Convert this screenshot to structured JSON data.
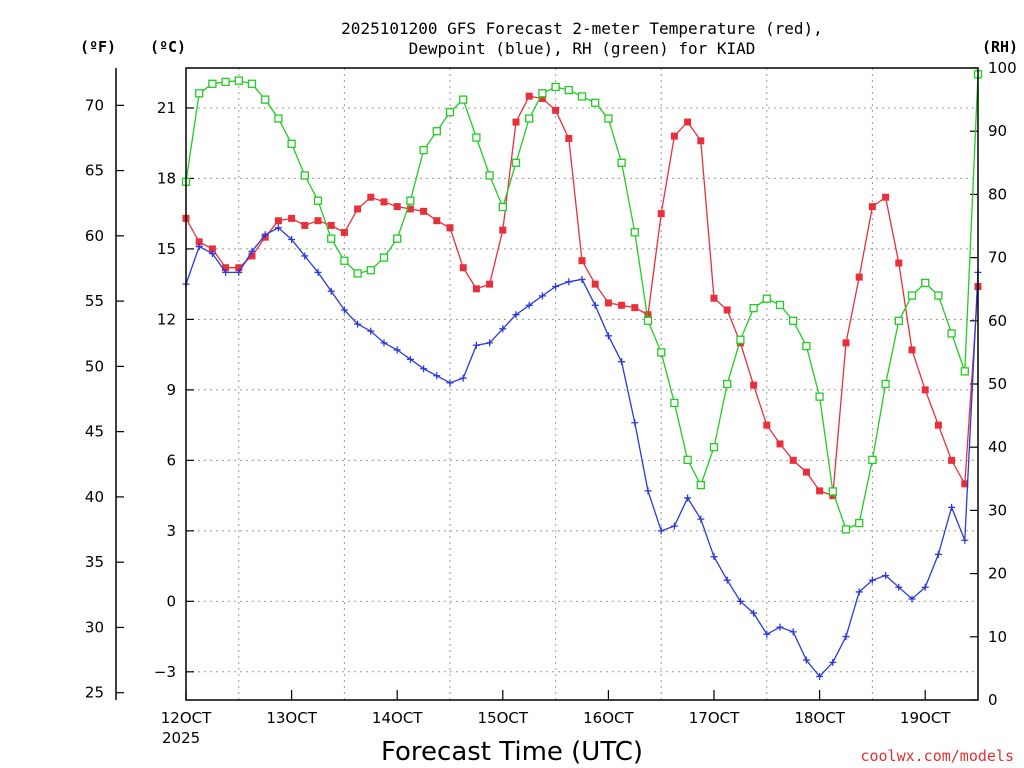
{
  "chart_data": {
    "type": "line",
    "title_line1": "2025101200 GFS Forecast 2-meter Temperature (red),",
    "title_line2": "Dewpoint (blue), RH (green) for KIAD",
    "xlabel": "Forecast Time (UTC)",
    "credit": "coolwx.com/models",
    "unit_f": "(ºF)",
    "unit_c": "(ºC)",
    "unit_rh": "(RH)",
    "x_range_days": [
      0,
      7.5
    ],
    "x_ticks": [
      {
        "day": 0,
        "label": "12OCT",
        "sub": "2025"
      },
      {
        "day": 1,
        "label": "13OCT"
      },
      {
        "day": 2,
        "label": "14OCT"
      },
      {
        "day": 3,
        "label": "15OCT"
      },
      {
        "day": 4,
        "label": "16OCT"
      },
      {
        "day": 5,
        "label": "17OCT"
      },
      {
        "day": 6,
        "label": "18OCT"
      },
      {
        "day": 7,
        "label": "19OCT"
      }
    ],
    "c_range": [
      -4.2,
      22.7
    ],
    "c_ticks": [
      "21",
      "18",
      "15",
      "12",
      "9",
      "6",
      "3",
      "0",
      "−3"
    ],
    "f_ticks": [
      "70",
      "65",
      "60",
      "55",
      "50",
      "45",
      "40",
      "35",
      "30",
      "25"
    ],
    "rh_range": [
      0,
      100
    ],
    "rh_ticks": [
      "100",
      "90",
      "80",
      "70",
      "60",
      "50",
      "40",
      "30",
      "20",
      "10",
      "0"
    ],
    "series": [
      {
        "name": "2-meter Temperature",
        "units": "C",
        "color": "#e8303a",
        "marker": "filled-square",
        "points": [
          [
            0,
            16.3
          ],
          [
            0.125,
            15.3
          ],
          [
            0.25,
            15.0
          ],
          [
            0.375,
            14.2
          ],
          [
            0.5,
            14.2
          ],
          [
            0.625,
            14.7
          ],
          [
            0.75,
            15.5
          ],
          [
            0.875,
            16.2
          ],
          [
            1.0,
            16.3
          ],
          [
            1.125,
            16.0
          ],
          [
            1.25,
            16.2
          ],
          [
            1.375,
            16.0
          ],
          [
            1.5,
            15.7
          ],
          [
            1.625,
            16.7
          ],
          [
            1.75,
            17.2
          ],
          [
            1.875,
            17.0
          ],
          [
            2.0,
            16.8
          ],
          [
            2.125,
            16.7
          ],
          [
            2.25,
            16.6
          ],
          [
            2.375,
            16.2
          ],
          [
            2.5,
            15.9
          ],
          [
            2.625,
            14.2
          ],
          [
            2.75,
            13.3
          ],
          [
            2.875,
            13.5
          ],
          [
            3.0,
            15.8
          ],
          [
            3.125,
            20.4
          ],
          [
            3.25,
            21.5
          ],
          [
            3.375,
            21.4
          ],
          [
            3.5,
            20.9
          ],
          [
            3.625,
            19.7
          ],
          [
            3.75,
            14.5
          ],
          [
            3.875,
            13.5
          ],
          [
            4.0,
            12.7
          ],
          [
            4.125,
            12.6
          ],
          [
            4.25,
            12.5
          ],
          [
            4.375,
            12.2
          ],
          [
            4.5,
            16.5
          ],
          [
            4.625,
            19.8
          ],
          [
            4.75,
            20.4
          ],
          [
            4.875,
            19.6
          ],
          [
            5.0,
            12.9
          ],
          [
            5.125,
            12.4
          ],
          [
            5.25,
            11.0
          ],
          [
            5.375,
            9.2
          ],
          [
            5.5,
            7.5
          ],
          [
            5.625,
            6.7
          ],
          [
            5.75,
            6.0
          ],
          [
            5.875,
            5.5
          ],
          [
            6.0,
            4.7
          ],
          [
            6.125,
            4.5
          ],
          [
            6.25,
            11.0
          ],
          [
            6.375,
            13.8
          ],
          [
            6.5,
            16.8
          ],
          [
            6.625,
            17.2
          ],
          [
            6.75,
            14.4
          ],
          [
            6.875,
            10.7
          ],
          [
            7.0,
            9.0
          ],
          [
            7.125,
            7.5
          ],
          [
            7.25,
            6.0
          ],
          [
            7.375,
            5.0
          ],
          [
            7.5,
            13.4
          ]
        ]
      },
      {
        "name": "Dewpoint",
        "units": "C",
        "color": "#2a3ad8",
        "marker": "plus",
        "points": [
          [
            0,
            13.5
          ],
          [
            0.125,
            15.1
          ],
          [
            0.25,
            14.8
          ],
          [
            0.375,
            14.0
          ],
          [
            0.5,
            14.0
          ],
          [
            0.625,
            14.9
          ],
          [
            0.75,
            15.6
          ],
          [
            0.875,
            15.9
          ],
          [
            1.0,
            15.4
          ],
          [
            1.125,
            14.7
          ],
          [
            1.25,
            14.0
          ],
          [
            1.375,
            13.2
          ],
          [
            1.5,
            12.4
          ],
          [
            1.625,
            11.8
          ],
          [
            1.75,
            11.5
          ],
          [
            1.875,
            11.0
          ],
          [
            2.0,
            10.7
          ],
          [
            2.125,
            10.3
          ],
          [
            2.25,
            9.9
          ],
          [
            2.375,
            9.6
          ],
          [
            2.5,
            9.3
          ],
          [
            2.625,
            9.5
          ],
          [
            2.75,
            10.9
          ],
          [
            2.875,
            11.0
          ],
          [
            3.0,
            11.6
          ],
          [
            3.125,
            12.2
          ],
          [
            3.25,
            12.6
          ],
          [
            3.375,
            13.0
          ],
          [
            3.5,
            13.4
          ],
          [
            3.625,
            13.6
          ],
          [
            3.75,
            13.7
          ],
          [
            3.875,
            12.6
          ],
          [
            4.0,
            11.3
          ],
          [
            4.125,
            10.2
          ],
          [
            4.25,
            7.6
          ],
          [
            4.375,
            4.7
          ],
          [
            4.5,
            3.0
          ],
          [
            4.625,
            3.2
          ],
          [
            4.75,
            4.4
          ],
          [
            4.875,
            3.5
          ],
          [
            5.0,
            1.9
          ],
          [
            5.125,
            0.9
          ],
          [
            5.25,
            0.0
          ],
          [
            5.375,
            -0.5
          ],
          [
            5.5,
            -1.4
          ],
          [
            5.625,
            -1.1
          ],
          [
            5.75,
            -1.3
          ],
          [
            5.875,
            -2.5
          ],
          [
            6.0,
            -3.2
          ],
          [
            6.125,
            -2.6
          ],
          [
            6.25,
            -1.5
          ],
          [
            6.375,
            0.4
          ],
          [
            6.5,
            0.9
          ],
          [
            6.625,
            1.1
          ],
          [
            6.75,
            0.6
          ],
          [
            6.875,
            0.1
          ],
          [
            7.0,
            0.6
          ],
          [
            7.125,
            2.0
          ],
          [
            7.25,
            4.0
          ],
          [
            7.375,
            2.6
          ],
          [
            7.5,
            14.0
          ]
        ]
      },
      {
        "name": "RH",
        "units": "%",
        "color": "#22cc22",
        "marker": "open-square",
        "points": [
          [
            0,
            82.0
          ],
          [
            0.125,
            96.0
          ],
          [
            0.25,
            97.5
          ],
          [
            0.375,
            97.8
          ],
          [
            0.5,
            98.0
          ],
          [
            0.625,
            97.5
          ],
          [
            0.75,
            95.0
          ],
          [
            0.875,
            92.0
          ],
          [
            1.0,
            88.0
          ],
          [
            1.125,
            83.0
          ],
          [
            1.25,
            79.0
          ],
          [
            1.375,
            73.0
          ],
          [
            1.5,
            69.5
          ],
          [
            1.625,
            67.5
          ],
          [
            1.75,
            68.0
          ],
          [
            1.875,
            70.0
          ],
          [
            2.0,
            73.0
          ],
          [
            2.125,
            79.0
          ],
          [
            2.25,
            87.0
          ],
          [
            2.375,
            90.0
          ],
          [
            2.5,
            93.0
          ],
          [
            2.625,
            95.0
          ],
          [
            2.75,
            89.0
          ],
          [
            2.875,
            83.0
          ],
          [
            3.0,
            78.0
          ],
          [
            3.125,
            85.0
          ],
          [
            3.25,
            92.0
          ],
          [
            3.375,
            96.0
          ],
          [
            3.5,
            97.0
          ],
          [
            3.625,
            96.5
          ],
          [
            3.75,
            95.5
          ],
          [
            3.875,
            94.5
          ],
          [
            4.0,
            92.0
          ],
          [
            4.125,
            85.0
          ],
          [
            4.25,
            74.0
          ],
          [
            4.375,
            60.0
          ],
          [
            4.5,
            55.0
          ],
          [
            4.625,
            47.0
          ],
          [
            4.75,
            38.0
          ],
          [
            4.875,
            34.0
          ],
          [
            5.0,
            40.0
          ],
          [
            5.125,
            50.0
          ],
          [
            5.25,
            57.0
          ],
          [
            5.375,
            62.0
          ],
          [
            5.5,
            63.5
          ],
          [
            5.625,
            62.5
          ],
          [
            5.75,
            60.0
          ],
          [
            5.875,
            56.0
          ],
          [
            6.0,
            48.0
          ],
          [
            6.125,
            33.0
          ],
          [
            6.25,
            27.0
          ],
          [
            6.375,
            28.0
          ],
          [
            6.5,
            38.0
          ],
          [
            6.625,
            50.0
          ],
          [
            6.75,
            60.0
          ],
          [
            6.875,
            64.0
          ],
          [
            7.0,
            66.0
          ],
          [
            7.125,
            64.0
          ],
          [
            7.25,
            58.0
          ],
          [
            7.375,
            52.0
          ],
          [
            7.5,
            99.0
          ]
        ]
      }
    ]
  }
}
